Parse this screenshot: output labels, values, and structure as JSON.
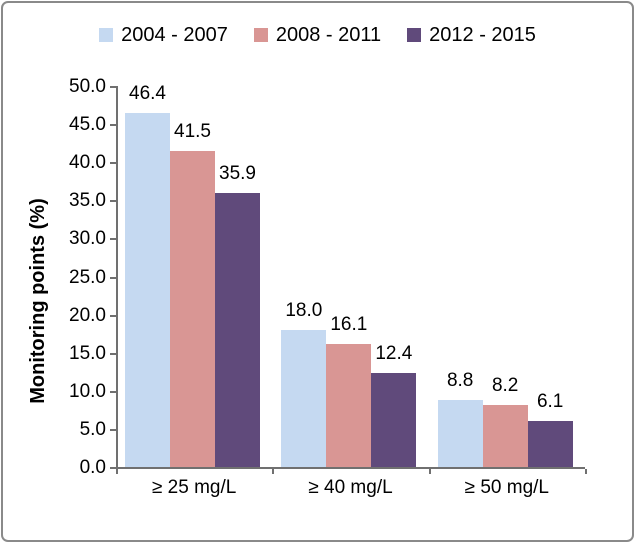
{
  "chart_data": {
    "type": "bar",
    "title": "",
    "categories": [
      "≥ 25 mg/L",
      "≥ 40 mg/L",
      "≥ 50 mg/L"
    ],
    "series": [
      {
        "name": "2004 - 2007",
        "color": "#C5D9F1",
        "values": [
          46.4,
          18.0,
          8.8
        ]
      },
      {
        "name": "2008 - 2011",
        "color": "#D99694",
        "values": [
          41.5,
          16.1,
          8.2
        ]
      },
      {
        "name": "2012 - 2015",
        "color": "#604A7B",
        "values": [
          35.9,
          12.4,
          6.1
        ]
      }
    ],
    "xlabel": "",
    "ylabel": "Monitoring points (%)",
    "ylim": [
      0,
      50
    ],
    "ytick_step": 5,
    "ytick_decimals": 1,
    "data_label_decimals": 1,
    "grid": false,
    "legend_position": "top",
    "axis_color": "#707070",
    "frame_color": "#8a8a8a"
  }
}
